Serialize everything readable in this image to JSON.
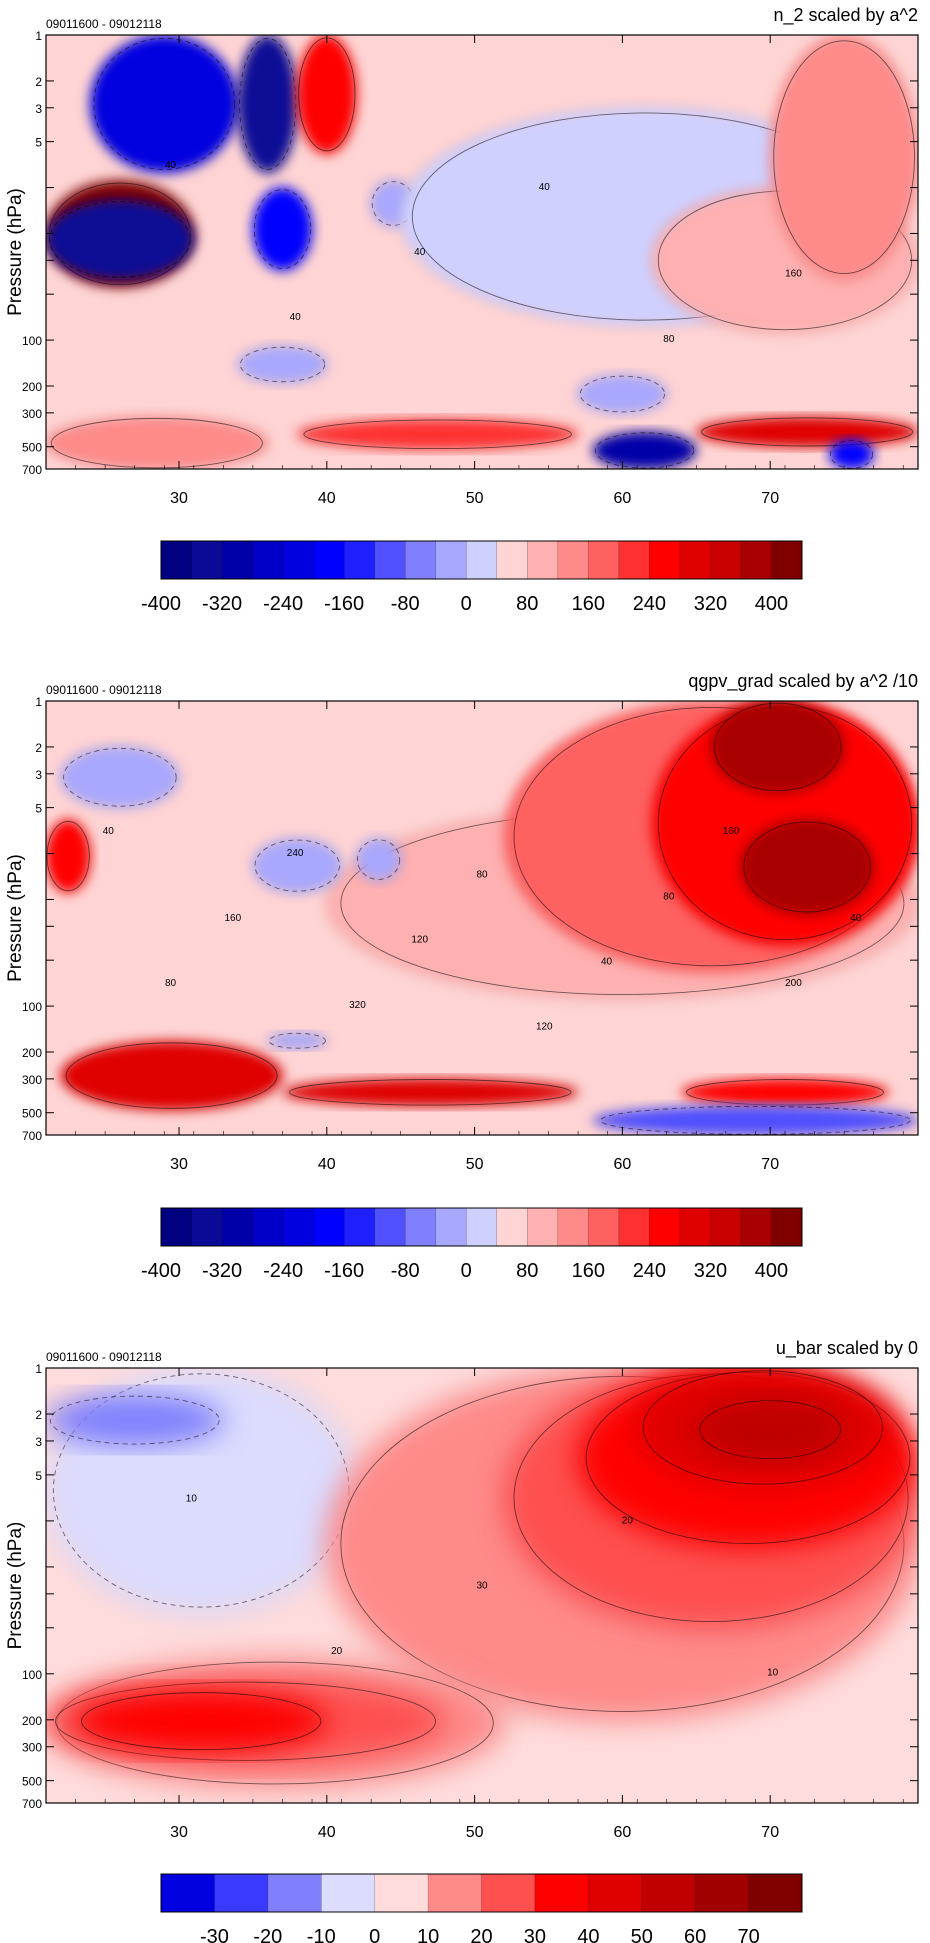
{
  "chart_data": [
    {
      "type": "heatmap",
      "title": "n_2 scaled by a^2",
      "date_range": "09011600 - 09012118",
      "ylabel": "Pressure (hPa)",
      "xlabel": "",
      "x_ticks": [
        30,
        40,
        50,
        60,
        70
      ],
      "xlim": [
        21,
        80
      ],
      "y_ticks": [
        1,
        2,
        3,
        5,
        10,
        20,
        30,
        50,
        100,
        200,
        300,
        500,
        700
      ],
      "y_tick_labels": [
        "1",
        "2",
        "3",
        "5",
        "",
        "",
        "",
        "",
        "100",
        "200",
        "300",
        "500",
        "700"
      ],
      "ylim": [
        1,
        700
      ],
      "yscale": "log",
      "colorbar_levels": [
        -400,
        -360,
        -320,
        -280,
        -240,
        -200,
        -160,
        -120,
        -80,
        -40,
        0,
        40,
        80,
        120,
        160,
        200,
        240,
        280,
        320,
        360,
        400
      ],
      "colorbar_labels": [
        "-400",
        "-320",
        "-240",
        "-160",
        "-80",
        "0",
        "80",
        "160",
        "240",
        "320",
        "400"
      ],
      "colorbar_colors": [
        "#000080",
        "#0a0a96",
        "#0000a8",
        "#0000c8",
        "#0000e0",
        "#0000ff",
        "#2020ff",
        "#5050ff",
        "#8080ff",
        "#a8a8ff",
        "#d0d0ff",
        "#ffd4d4",
        "#ffb0b0",
        "#ff8a8a",
        "#ff6060",
        "#ff3030",
        "#ff0000",
        "#e00000",
        "#c80000",
        "#a80000",
        "#800000"
      ],
      "contour_labels": [
        "40",
        "40",
        "40",
        "40",
        "80",
        "160"
      ],
      "regions": [
        {
          "x": [
            21,
            80
          ],
          "y": [
            1,
            700
          ],
          "v": 40
        },
        {
          "x": [
            24,
            34
          ],
          "y": [
            1,
            8
          ],
          "v": -240
        },
        {
          "x": [
            34,
            38
          ],
          "y": [
            1,
            8
          ],
          "v": -360
        },
        {
          "x": [
            38,
            42
          ],
          "y": [
            1,
            6
          ],
          "v": 240
        },
        {
          "x": [
            21,
            31
          ],
          "y": [
            9,
            45
          ],
          "v": 400
        },
        {
          "x": [
            21,
            31
          ],
          "y": [
            12,
            40
          ],
          "v": -360
        },
        {
          "x": [
            35,
            39
          ],
          "y": [
            10,
            35
          ],
          "v": -200
        },
        {
          "x": [
            43,
            46
          ],
          "y": [
            9,
            18
          ],
          "v": -40
        },
        {
          "x": [
            45,
            78
          ],
          "y": [
            3,
            80
          ],
          "v": 20
        },
        {
          "x": [
            62,
            80
          ],
          "y": [
            10,
            90
          ],
          "v": 80
        },
        {
          "x": [
            70,
            80
          ],
          "y": [
            1,
            40
          ],
          "v": 120
        },
        {
          "x": [
            34,
            40
          ],
          "y": [
            110,
            190
          ],
          "v": -40
        },
        {
          "x": [
            57,
            63
          ],
          "y": [
            170,
            300
          ],
          "v": -40
        },
        {
          "x": [
            38,
            57
          ],
          "y": [
            330,
            520
          ],
          "v": 200
        },
        {
          "x": [
            65,
            80
          ],
          "y": [
            320,
            500
          ],
          "v": 280
        },
        {
          "x": [
            58,
            65
          ],
          "y": [
            400,
            700
          ],
          "v": -320
        },
        {
          "x": [
            74,
            77
          ],
          "y": [
            450,
            700
          ],
          "v": -200
        },
        {
          "x": [
            21,
            36
          ],
          "y": [
            320,
            700
          ],
          "v": 120
        }
      ]
    },
    {
      "type": "heatmap",
      "title": "qgpv_grad scaled by a^2 /10",
      "date_range": "09011600 - 09012118",
      "ylabel": "Pressure (hPa)",
      "xlabel": "",
      "x_ticks": [
        30,
        40,
        50,
        60,
        70
      ],
      "xlim": [
        21,
        80
      ],
      "y_ticks": [
        1,
        2,
        3,
        5,
        10,
        20,
        30,
        50,
        100,
        200,
        300,
        500,
        700
      ],
      "y_tick_labels": [
        "1",
        "2",
        "3",
        "5",
        "",
        "",
        "",
        "",
        "100",
        "200",
        "300",
        "500",
        "700"
      ],
      "ylim": [
        1,
        700
      ],
      "yscale": "log",
      "colorbar_levels": [
        -400,
        -360,
        -320,
        -280,
        -240,
        -200,
        -160,
        -120,
        -80,
        -40,
        0,
        40,
        80,
        120,
        160,
        200,
        240,
        280,
        320,
        360,
        400
      ],
      "colorbar_labels": [
        "-400",
        "-320",
        "-240",
        "-160",
        "-80",
        "0",
        "80",
        "160",
        "240",
        "320",
        "400"
      ],
      "colorbar_colors": [
        "#000080",
        "#0a0a96",
        "#0000a8",
        "#0000c8",
        "#0000e0",
        "#0000ff",
        "#2020ff",
        "#5050ff",
        "#8080ff",
        "#a8a8ff",
        "#d0d0ff",
        "#ffd4d4",
        "#ffb0b0",
        "#ff8a8a",
        "#ff6060",
        "#ff3030",
        "#ff0000",
        "#e00000",
        "#c80000",
        "#a80000",
        "#800000"
      ],
      "contour_labels": [
        "40",
        "80",
        "160",
        "240",
        "320",
        "120",
        "80",
        "120",
        "40",
        "80",
        "160",
        "200",
        "40"
      ],
      "regions": [
        {
          "x": [
            21,
            80
          ],
          "y": [
            1,
            700
          ],
          "v": 40
        },
        {
          "x": [
            40,
            80
          ],
          "y": [
            5,
            90
          ],
          "v": 80
        },
        {
          "x": [
            52,
            80
          ],
          "y": [
            1,
            60
          ],
          "v": 160
        },
        {
          "x": [
            62,
            80
          ],
          "y": [
            1,
            40
          ],
          "v": 240
        },
        {
          "x": [
            66,
            75
          ],
          "y": [
            1,
            4
          ],
          "v": 360
        },
        {
          "x": [
            68,
            77
          ],
          "y": [
            6,
            25
          ],
          "v": 360
        },
        {
          "x": [
            22,
            30
          ],
          "y": [
            2,
            5
          ],
          "v": -40
        },
        {
          "x": [
            21,
            24
          ],
          "y": [
            6,
            18
          ],
          "v": 240
        },
        {
          "x": [
            35,
            41
          ],
          "y": [
            8,
            18
          ],
          "v": -40
        },
        {
          "x": [
            42,
            45
          ],
          "y": [
            8,
            15
          ],
          "v": -40
        },
        {
          "x": [
            22,
            37
          ],
          "y": [
            170,
            480
          ],
          "v": 280
        },
        {
          "x": [
            37,
            57
          ],
          "y": [
            300,
            450
          ],
          "v": 280
        },
        {
          "x": [
            64,
            78
          ],
          "y": [
            300,
            450
          ],
          "v": 240
        },
        {
          "x": [
            58,
            80
          ],
          "y": [
            450,
            700
          ],
          "v": -120
        },
        {
          "x": [
            36,
            40
          ],
          "y": [
            150,
            190
          ],
          "v": -40
        }
      ]
    },
    {
      "type": "heatmap",
      "title": "u_bar scaled by 0",
      "date_range": "09011600 - 09012118",
      "ylabel": "Pressure (hPa)",
      "xlabel": "",
      "x_ticks": [
        30,
        40,
        50,
        60,
        70
      ],
      "xlim": [
        21,
        80
      ],
      "y_ticks": [
        1,
        2,
        3,
        5,
        10,
        20,
        30,
        50,
        100,
        200,
        300,
        500,
        700
      ],
      "y_tick_labels": [
        "1",
        "2",
        "3",
        "5",
        "",
        "",
        "",
        "",
        "100",
        "200",
        "300",
        "500",
        "700"
      ],
      "ylim": [
        1,
        700
      ],
      "yscale": "log",
      "colorbar_levels": [
        -40,
        -30,
        -20,
        -10,
        0,
        10,
        20,
        30,
        40,
        50,
        60,
        70,
        80
      ],
      "colorbar_labels": [
        "-30",
        "-20",
        "-10",
        "0",
        "10",
        "20",
        "30",
        "40",
        "50",
        "60",
        "70"
      ],
      "colorbar_colors": [
        "#0000e0",
        "#3a3aff",
        "#8080ff",
        "#dcdcff",
        "#ffdcdc",
        "#ff8a8a",
        "#ff5050",
        "#ff0000",
        "#e00000",
        "#c00000",
        "#a00000",
        "#800000"
      ],
      "contour_labels": [
        "10",
        "20",
        "30",
        "20",
        "10"
      ],
      "regions": [
        {
          "x": [
            21,
            80
          ],
          "y": [
            1,
            700
          ],
          "v": 5
        },
        {
          "x": [
            21,
            42
          ],
          "y": [
            1,
            40
          ],
          "v": -5
        },
        {
          "x": [
            21,
            33
          ],
          "y": [
            1.5,
            3.2
          ],
          "v": -15
        },
        {
          "x": [
            40,
            80
          ],
          "y": [
            1,
            200
          ],
          "v": 15
        },
        {
          "x": [
            52,
            80
          ],
          "y": [
            1,
            50
          ],
          "v": 25
        },
        {
          "x": [
            57,
            80
          ],
          "y": [
            1,
            15
          ],
          "v": 35
        },
        {
          "x": [
            61,
            78
          ],
          "y": [
            1,
            6
          ],
          "v": 45
        },
        {
          "x": [
            65,
            75
          ],
          "y": [
            1.6,
            4
          ],
          "v": 55
        },
        {
          "x": [
            21,
            52
          ],
          "y": [
            80,
            550
          ],
          "v": 15
        },
        {
          "x": [
            21,
            48
          ],
          "y": [
            110,
            380
          ],
          "v": 25
        },
        {
          "x": [
            23,
            40
          ],
          "y": [
            130,
            320
          ],
          "v": 35
        }
      ]
    }
  ]
}
